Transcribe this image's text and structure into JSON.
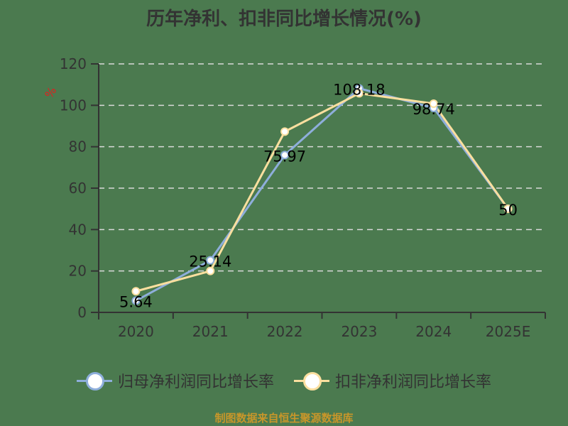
{
  "title": "历年净利、扣非同比增长情况(%)",
  "y_unit": "%",
  "colors": {
    "background": "#4b7a4f",
    "series1": "#8eaedb",
    "series2": "#fbdf9f",
    "grid": "#d9d9d9",
    "axis": "#333333",
    "unit": "#e02020",
    "source": "#c8962a"
  },
  "legend": [
    {
      "label": "归母净利润同比增长率",
      "color": "#8eaedb"
    },
    {
      "label": "扣非净利润同比增长率",
      "color": "#fbdf9f"
    }
  ],
  "source": "制图数据来自恒生聚源数据库",
  "chart_data": {
    "type": "line",
    "title": "历年净利、扣非同比增长情况(%)",
    "xlabel": "",
    "ylabel": "%",
    "categories": [
      "2020",
      "2021",
      "2022",
      "2023",
      "2024",
      "2025E"
    ],
    "ylim": [
      0,
      120
    ],
    "yticks": [
      0,
      20,
      40,
      60,
      80,
      100,
      120
    ],
    "grid": true,
    "legend_position": "bottom",
    "series": [
      {
        "name": "归母净利润同比增长率",
        "values": [
          5.64,
          25.14,
          75.97,
          108.18,
          98.74,
          50
        ],
        "labels": [
          "5.64",
          "25.14",
          "75.97",
          "108.18",
          "98.74",
          "50"
        ]
      },
      {
        "name": "扣非净利润同比增长率",
        "values": [
          10.2,
          20.0,
          87.3,
          105.8,
          100.8,
          50
        ]
      }
    ]
  }
}
